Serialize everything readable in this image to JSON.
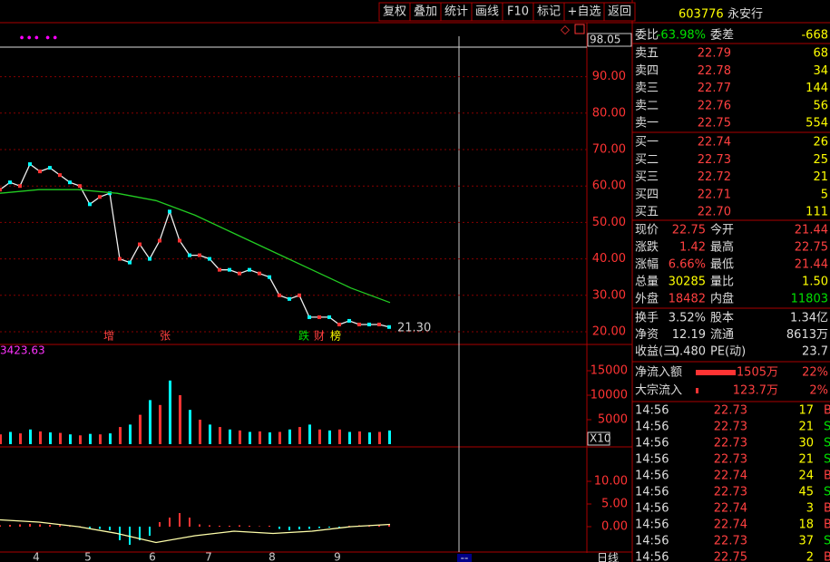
{
  "toolbar": [
    "复权",
    "叠加",
    "统计",
    "画线",
    "F10",
    "标记",
    "+自选",
    "返回"
  ],
  "stock": {
    "code": "603776",
    "name": "永安行"
  },
  "ratio": [
    "委比",
    "-63.98%",
    "委差",
    "-668"
  ],
  "asks": [
    [
      "卖五",
      "22.79",
      "68"
    ],
    [
      "卖四",
      "22.78",
      "34"
    ],
    [
      "卖三",
      "22.77",
      "144"
    ],
    [
      "卖二",
      "22.76",
      "56"
    ],
    [
      "卖一",
      "22.75",
      "554"
    ]
  ],
  "bids": [
    [
      "买一",
      "22.74",
      "26"
    ],
    [
      "买二",
      "22.73",
      "25"
    ],
    [
      "买三",
      "22.72",
      "21"
    ],
    [
      "买四",
      "22.71",
      "5"
    ],
    [
      "买五",
      "22.70",
      "111"
    ]
  ],
  "quote": [
    [
      "现价",
      "22.75",
      "今开",
      "21.44"
    ],
    [
      "涨跌",
      "1.42",
      "最高",
      "22.75"
    ],
    [
      "涨幅",
      "6.66%",
      "最低",
      "21.44"
    ],
    [
      "总量",
      "30285",
      "量比",
      "1.50"
    ],
    [
      "外盘",
      "18482",
      "内盘",
      "11803"
    ]
  ],
  "fundamentals": [
    [
      "换手",
      "3.52%",
      "股本",
      "1.34亿"
    ],
    [
      "净资",
      "12.19",
      "流通",
      "8613万"
    ],
    [
      "收益(三)",
      "0.480",
      "PE(动)",
      "23.7"
    ]
  ],
  "flows": [
    [
      "净流入额",
      "1505万",
      "22%"
    ],
    [
      "大宗流入",
      "123.7万",
      "2%"
    ]
  ],
  "trades": [
    [
      "14:56",
      "22.73",
      "17",
      "B"
    ],
    [
      "14:56",
      "22.73",
      "21",
      "S"
    ],
    [
      "14:56",
      "22.73",
      "30",
      "S"
    ],
    [
      "14:56",
      "22.73",
      "21",
      "S"
    ],
    [
      "14:56",
      "22.74",
      "24",
      "B"
    ],
    [
      "14:56",
      "22.73",
      "45",
      "S"
    ],
    [
      "14:56",
      "22.74",
      "3",
      "B"
    ],
    [
      "14:56",
      "22.74",
      "18",
      "B"
    ],
    [
      "14:56",
      "22.73",
      "37",
      "S"
    ],
    [
      "14:56",
      "22.75",
      "2",
      "B"
    ]
  ],
  "kline": {
    "top_value": 98.05,
    "price_ticks": [
      {
        "value": 90,
        "label": "90.00"
      },
      {
        "value": 80,
        "label": "80.00"
      },
      {
        "value": 70,
        "label": "70.00"
      },
      {
        "value": 60,
        "label": "60.00"
      },
      {
        "value": 50,
        "label": "50.00"
      },
      {
        "value": 40,
        "label": "40.00"
      },
      {
        "value": 30,
        "label": "30.00"
      },
      {
        "value": 20,
        "label": "20.00"
      }
    ],
    "close": [
      59,
      61,
      60,
      66,
      64,
      65,
      63,
      61,
      60,
      55,
      57,
      58,
      40,
      39,
      44,
      40,
      45,
      53,
      45,
      41,
      41,
      40,
      37,
      37,
      36,
      37,
      36,
      35,
      30,
      29,
      30,
      24,
      24,
      24,
      22,
      23,
      22,
      22,
      22,
      21.3
    ],
    "ma": [
      58,
      59,
      59,
      58,
      56,
      52,
      47,
      42,
      37,
      32,
      28
    ],
    "last_label": "21.30",
    "markers": [
      "增",
      "张",
      "跌",
      "财",
      "榜"
    ],
    "volume_label": "3423.63",
    "volume_ticks": [
      15000,
      10000,
      5000
    ],
    "volume": [
      2000,
      2500,
      2200,
      3000,
      2600,
      2400,
      2300,
      2000,
      1800,
      2100,
      2000,
      2200,
      3500,
      4000,
      6000,
      9000,
      8000,
      13000,
      10000,
      7000,
      5000,
      4000,
      3500,
      3000,
      2800,
      2500,
      2600,
      2400,
      2500,
      3000,
      3500,
      4000,
      3000,
      2800,
      3000,
      2500,
      2600,
      2400,
      2500,
      2800
    ],
    "volume_multiplier": "X10",
    "macd_ticks": [
      {
        "value": 10,
        "label": "10.00"
      },
      {
        "value": 5,
        "label": "5.00"
      },
      {
        "value": 0,
        "label": "0.00"
      }
    ],
    "macd": [
      0.3,
      0.4,
      0.5,
      0.6,
      0.5,
      0.4,
      0.3,
      0.2,
      0.1,
      -0.3,
      -0.5,
      -0.8,
      -3,
      -4,
      -3,
      -2,
      1,
      2,
      3,
      2,
      0.5,
      0.3,
      0.2,
      0.2,
      0.3,
      0.2,
      0.1,
      0.2,
      -0.5,
      -0.8,
      -0.6,
      -0.5,
      -0.3,
      -0.2,
      -0.2,
      0.2,
      0.3,
      0.2,
      0.3,
      0.4
    ],
    "dif": [
      1.5,
      1,
      0,
      -1.5,
      -3.5,
      -2,
      -1,
      -1.5,
      -1,
      0,
      0.5
    ],
    "dates": [
      "4",
      "5",
      "6",
      "7",
      "8",
      "9"
    ],
    "period": "日线",
    "cursor": "--"
  }
}
